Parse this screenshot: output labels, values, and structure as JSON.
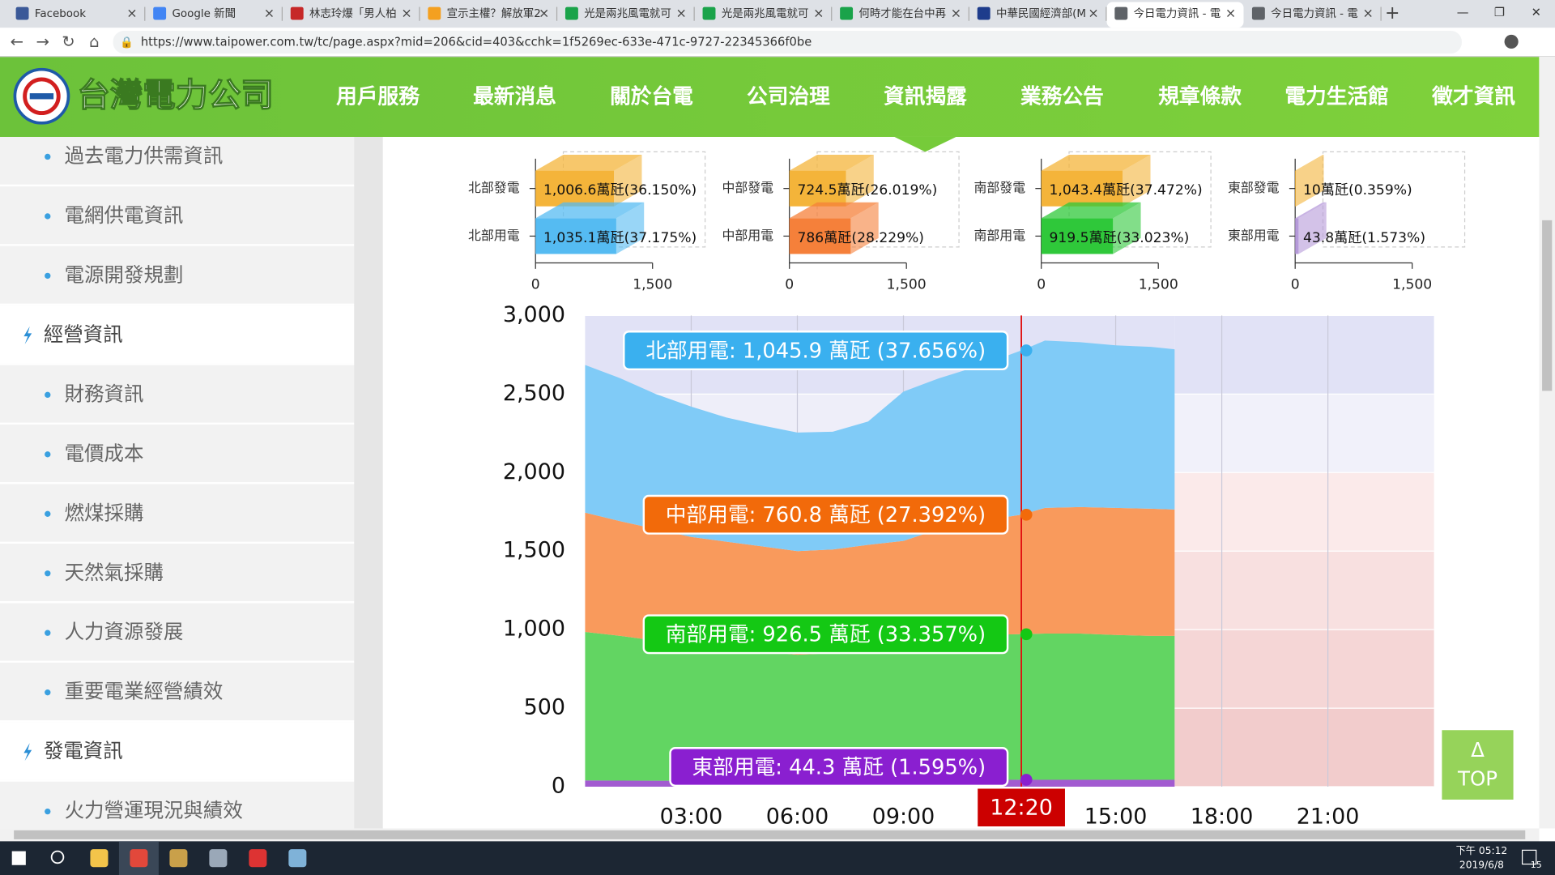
{
  "browser": {
    "tabs": [
      "Facebook",
      "Google 新聞",
      "林志玲爆「男人柏",
      "宣示主權？解放軍2",
      "光是兩兆風電就可",
      "光是兩兆風電就可",
      "何時才能在台中再",
      "中華民國經濟部(M",
      "今日電力資訊 - 電",
      "今日電力資訊 - 電"
    ],
    "url": "https://www.taipower.com.tw/tc/page.aspx?mid=206&cid=403&cchk=1f5269ec-633e-471c-9727-22345366f0be"
  },
  "header": {
    "logo": "台灣電力公司",
    "nav": [
      "用戶服務",
      "最新消息",
      "關於台電",
      "公司治理",
      "資訊揭露",
      "業務公告",
      "規章條款",
      "電力生活館",
      "徵才資訊"
    ]
  },
  "sidebar": [
    {
      "text": "過去電力供需資訊",
      "level": 2
    },
    {
      "text": "電網供電資訊",
      "level": 2
    },
    {
      "text": "電源開發規劃",
      "level": 2
    },
    {
      "text": "經營資訊",
      "level": 1
    },
    {
      "text": "財務資訊",
      "level": 2
    },
    {
      "text": "電價成本",
      "level": 2
    },
    {
      "text": "燃煤採購",
      "level": 2
    },
    {
      "text": "天然氣採購",
      "level": 2
    },
    {
      "text": "人力資源發展",
      "level": 2
    },
    {
      "text": "重要電業經營績效",
      "level": 2
    },
    {
      "text": "發電資訊",
      "level": 1
    },
    {
      "text": "火力營運現況與績效",
      "level": 2
    }
  ],
  "chart_data": [
    {
      "type": "bar",
      "horizontal": true,
      "categories": [
        "北部發電",
        "北部用電"
      ],
      "values": [
        1006.6,
        1035.1
      ],
      "value_labels": [
        "1,006.6萬瓩(36.150%)",
        "1,035.1萬瓩(37.175%)"
      ],
      "colors": [
        "#f4b43a",
        "#55bbf2"
      ],
      "xlim": [
        0,
        1500
      ],
      "xticks": [
        0,
        {
          "value": 1500,
          "label": "1,500"
        }
      ]
    },
    {
      "type": "bar",
      "horizontal": true,
      "categories": [
        "中部發電",
        "中部用電"
      ],
      "values": [
        724.5,
        786
      ],
      "value_labels": [
        "724.5萬瓩(26.019%)",
        "786萬瓩(28.229%)"
      ],
      "colors": [
        "#f4b43a",
        "#f5803a"
      ],
      "xlim": [
        0,
        1500
      ],
      "xticks": [
        0,
        {
          "value": 1500,
          "label": "1,500"
        }
      ]
    },
    {
      "type": "bar",
      "horizontal": true,
      "categories": [
        "南部發電",
        "南部用電"
      ],
      "values": [
        1043.4,
        919.5
      ],
      "value_labels": [
        "1,043.4萬瓩(37.472%)",
        "919.5萬瓩(33.023%)"
      ],
      "colors": [
        "#f4b43a",
        "#2fc83a"
      ],
      "xlim": [
        0,
        1500
      ],
      "xticks": [
        0,
        {
          "value": 1500,
          "label": "1,500"
        }
      ]
    },
    {
      "type": "bar",
      "horizontal": true,
      "categories": [
        "東部發電",
        "東部用電"
      ],
      "values": [
        10,
        43.8
      ],
      "value_labels": [
        "10萬瓩(0.359%)",
        "43.8萬瓩(1.573%)"
      ],
      "colors": [
        "#f4b43a",
        "#b59ad9"
      ],
      "xlim": [
        0,
        1500
      ],
      "xticks": [
        0,
        {
          "value": 1500,
          "label": "1,500"
        }
      ]
    },
    {
      "type": "area",
      "stacked": true,
      "x": [
        "00:00",
        "01:00",
        "02:00",
        "03:00",
        "04:00",
        "05:00",
        "06:00",
        "07:00",
        "08:00",
        "09:00",
        "10:00",
        "11:00",
        "12:00",
        "12:20",
        "13:00",
        "14:00",
        "15:00",
        "16:00",
        "16:40"
      ],
      "xlim": [
        "00:00",
        "24:00"
      ],
      "xticks": [
        "03:00",
        "06:00",
        "09:00",
        "15:00",
        "18:00",
        "21:00"
      ],
      "ylim": [
        0,
        3000
      ],
      "yticks": [
        0,
        500,
        {
          "value": 1000,
          "label": "1,000"
        },
        {
          "value": 1500,
          "label": "1,500"
        },
        {
          "value": 2000,
          "label": "2,000"
        },
        {
          "value": 2500,
          "label": "2,500"
        },
        {
          "value": 3000,
          "label": "3,000"
        }
      ],
      "current": "12:20",
      "series": [
        {
          "color": "#a25bd0",
          "label_color": "#8a1fd0",
          "tooltip": "東部用電: 44.3 萬瓩 (1.595%)",
          "values": [
            40,
            39,
            38,
            38,
            38,
            38,
            39,
            40,
            42,
            43,
            44,
            44,
            44,
            44.3,
            44,
            44,
            44,
            44,
            44
          ]
        },
        {
          "color": "#62d562",
          "label_color": "#14c814",
          "tooltip": "南部用電: 926.5 萬瓩 (33.357%)",
          "values": [
            945,
            921,
            892,
            862,
            842,
            822,
            801,
            810,
            838,
            877,
            906,
            921,
            926,
            926.5,
            931,
            931,
            922,
            916,
            916
          ]
        },
        {
          "color": "#f99a5c",
          "label_color": "#f26a0a",
          "tooltip": "中部用電: 760.8 萬瓩 (27.392%)",
          "values": [
            760,
            730,
            710,
            690,
            680,
            670,
            660,
            660,
            660,
            645,
            690,
            735,
            750,
            760.8,
            800,
            805,
            809,
            810,
            805
          ]
        },
        {
          "color": "#80cbf7",
          "label_color": "#3ab0ef",
          "tooltip": "北部用電: 1,045.9 萬瓩 (37.656%)",
          "values": [
            940,
            910,
            860,
            830,
            790,
            770,
            755,
            750,
            785,
            950,
            960,
            970,
            1030,
            1045.9,
            1065,
            1050,
            1035,
            1030,
            1020
          ]
        }
      ]
    }
  ],
  "top_button": {
    "arrow": "Δ",
    "label": "TOP"
  },
  "taskbar": {
    "time": "下午 05:12",
    "date": "2019/6/8",
    "badge": "15"
  }
}
